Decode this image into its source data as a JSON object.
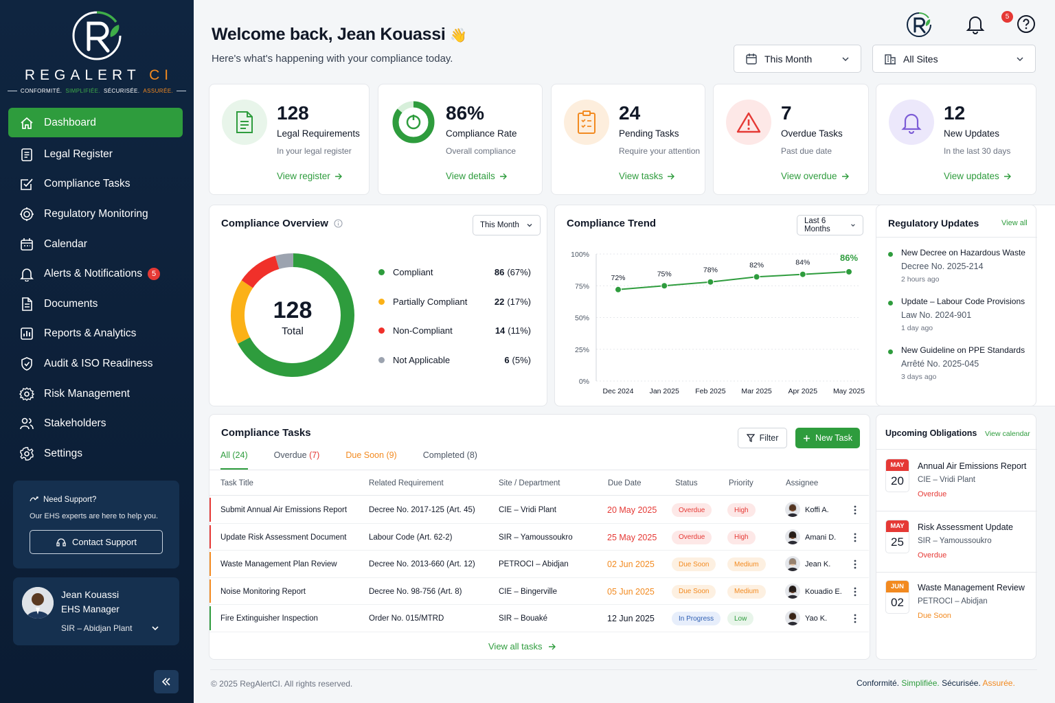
{
  "brand": {
    "name": "REGALERT",
    "suffix": "CI",
    "tagline_1": "CONFORMITÉ.",
    "tagline_2": "SIMPLIFIÉE.",
    "tagline_3": "SÉCURISÉE.",
    "tagline_4": "ASSURÉE."
  },
  "sidebar": {
    "items": [
      {
        "label": "Dashboard",
        "icon": "home-icon"
      },
      {
        "label": "Legal Register",
        "icon": "register-icon"
      },
      {
        "label": "Compliance Tasks",
        "icon": "checkbox-icon"
      },
      {
        "label": "Regulatory Monitoring",
        "icon": "radar-icon"
      },
      {
        "label": "Calendar",
        "icon": "calendar-icon"
      },
      {
        "label": "Alerts & Notifications",
        "icon": "bell-icon",
        "badge": "5"
      },
      {
        "label": "Documents",
        "icon": "document-icon"
      },
      {
        "label": "Reports & Analytics",
        "icon": "chart-icon"
      },
      {
        "label": "Audit & ISO Readiness",
        "icon": "shield-icon"
      },
      {
        "label": "Risk Management",
        "icon": "gear-icon"
      },
      {
        "label": "Stakeholders",
        "icon": "users-icon"
      },
      {
        "label": "Settings",
        "icon": "settings-icon"
      }
    ],
    "support": {
      "title": "Need Support?",
      "text": "Our EHS experts are here to help you.",
      "button": "Contact Support"
    },
    "user": {
      "name": "Jean Kouassi",
      "role": "EHS Manager",
      "site": "SIR – Abidjan Plant"
    }
  },
  "header": {
    "welcome": "Welcome back, Jean Kouassi",
    "wave": "👋",
    "subtitle": "Here's what's happening with your compliance today.",
    "notifications_badge": "5",
    "period_select": "This Month",
    "site_select": "All Sites"
  },
  "stats": [
    {
      "value": "128",
      "label": "Legal Requirements",
      "sub": "In your legal register",
      "link": "View register"
    },
    {
      "value": "86%",
      "label": "Compliance Rate",
      "sub": "Overall compliance",
      "link": "View details",
      "fraction": 0.86
    },
    {
      "value": "24",
      "label": "Pending Tasks",
      "sub": "Require your attention",
      "link": "View tasks"
    },
    {
      "value": "7",
      "label": "Overdue Tasks",
      "sub": "Past due date",
      "link": "View overdue"
    },
    {
      "value": "12",
      "label": "New Updates",
      "sub": "In the last 30 days",
      "link": "View updates"
    }
  ],
  "overview": {
    "title": "Compliance Overview",
    "select": "This Month",
    "total": "128",
    "total_label": "Total",
    "legend": [
      {
        "label": "Compliant",
        "value": "86",
        "pct": "(67%)",
        "count": 86,
        "color": "#2e9c3d"
      },
      {
        "label": "Partially Compliant",
        "value": "22",
        "pct": "(17%)",
        "count": 22,
        "color": "#fbb117"
      },
      {
        "label": "Non-Compliant",
        "value": "14",
        "pct": "(11%)",
        "count": 14,
        "color": "#f0302a"
      },
      {
        "label": "Not Applicable",
        "value": "6",
        "pct": "(5%)",
        "count": 6,
        "color": "#9ca3af"
      }
    ]
  },
  "trend": {
    "title": "Compliance Trend",
    "select": "Last 6 Months"
  },
  "chart_data": {
    "type": "line",
    "x": [
      "Dec 2024",
      "Jan 2025",
      "Feb 2025",
      "Mar 2025",
      "Apr 2025",
      "May 2025"
    ],
    "values": [
      72,
      75,
      78,
      82,
      84,
      86
    ],
    "labels": [
      "72%",
      "75%",
      "78%",
      "82%",
      "84%",
      "86%"
    ],
    "yticks": [
      "0%",
      "25%",
      "50%",
      "75%",
      "100%"
    ],
    "ylim": [
      0,
      100
    ],
    "color": "#2e9c3d"
  },
  "updates": {
    "title": "Regulatory Updates",
    "view_all": "View all",
    "items": [
      {
        "title": "New Decree on Hazardous Waste",
        "ref": "Decree No. 2025-214",
        "time": "2 hours ago"
      },
      {
        "title": "Update – Labour Code Provisions",
        "ref": "Law No. 2024-901",
        "time": "1 day ago"
      },
      {
        "title": "New Guideline on PPE Standards",
        "ref": "Arrêté No. 2025-045",
        "time": "3 days ago"
      }
    ]
  },
  "tasks": {
    "title": "Compliance Tasks",
    "filter": "Filter",
    "new_task": "New Task",
    "tabs": [
      {
        "label": "All",
        "count": "(24)"
      },
      {
        "label": "Overdue",
        "count": "(7)"
      },
      {
        "label": "Due Soon",
        "count": "(9)"
      },
      {
        "label": "Completed",
        "count": "(8)"
      }
    ],
    "columns": [
      "Task Title",
      "Related Requirement",
      "Site / Department",
      "Due Date",
      "Status",
      "Priority",
      "Assignee"
    ],
    "rows": [
      {
        "title": "Submit Annual Air Emissions Report",
        "req": "Decree No. 2017-125 (Art. 45)",
        "site": "CIE – Vridi Plant",
        "due": "20 May 2025",
        "status": "Overdue",
        "priority": "High",
        "assignee": "Koffi A."
      },
      {
        "title": "Update Risk Assessment Document",
        "req": "Labour Code (Art. 62-2)",
        "site": "SIR – Yamoussoukro",
        "due": "25 May 2025",
        "status": "Overdue",
        "priority": "High",
        "assignee": "Amani D."
      },
      {
        "title": "Waste Management Plan Review",
        "req": "Decree No. 2013-660 (Art. 12)",
        "site": "PETROCI – Abidjan",
        "due": "02 Jun 2025",
        "status": "Due Soon",
        "priority": "Medium",
        "assignee": "Jean K."
      },
      {
        "title": "Noise Monitoring Report",
        "req": "Decree No. 98-756 (Art. 8)",
        "site": "CIE – Bingerville",
        "due": "05 Jun 2025",
        "status": "Due Soon",
        "priority": "Medium",
        "assignee": "Kouadio E."
      },
      {
        "title": "Fire Extinguisher Inspection",
        "req": "Order No. 015/MTRD",
        "site": "SIR – Bouaké",
        "due": "12 Jun 2025",
        "status": "In Progress",
        "priority": "Low",
        "assignee": "Yao K."
      }
    ],
    "view_all": "View all tasks"
  },
  "obligations": {
    "title": "Upcoming Obligations",
    "view_calendar": "View calendar",
    "items": [
      {
        "month": "MAY",
        "day": "20",
        "title": "Annual Air Emissions Report",
        "site": "CIE – Vridi Plant",
        "status": "Overdue"
      },
      {
        "month": "MAY",
        "day": "25",
        "title": "Risk Assessment Update",
        "site": "SIR – Yamoussoukro",
        "status": "Overdue"
      },
      {
        "month": "JUN",
        "day": "02",
        "title": "Waste Management Review",
        "site": "PETROCI – Abidjan",
        "status": "Due Soon"
      }
    ]
  },
  "footer": {
    "copyright": "© 2025 RegAlertCI. All rights reserved.",
    "s1": "Conformité.",
    "s2": "Simplifiée.",
    "s3": "Sécurisée.",
    "s4": "Assurée."
  }
}
